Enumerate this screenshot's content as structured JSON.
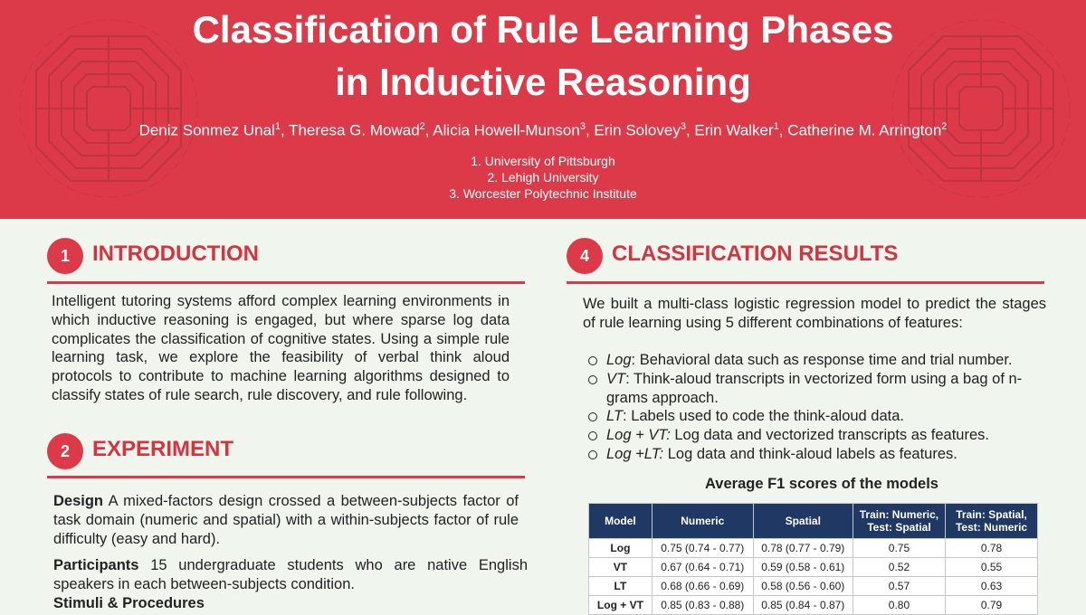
{
  "title_line1": "Classification of Rule Learning Phases",
  "title_line2": "in Inductive Reasoning",
  "authors": [
    {
      "name": "Deniz Sonmez Unal",
      "aff": "1"
    },
    {
      "name": "Theresa G. Mowad",
      "aff": "2"
    },
    {
      "name": "Alicia Howell-Munson",
      "aff": "3"
    },
    {
      "name": "Erin Solovey",
      "aff": "3"
    },
    {
      "name": "Erin Walker",
      "aff": "1"
    },
    {
      "name": "Catherine M. Arrington",
      "aff": "2"
    }
  ],
  "affiliations": [
    "1. University of Pittsburgh",
    "2. Lehigh University",
    "3. Worcester Polytechnic Institute"
  ],
  "colors": {
    "accent": "#dc3a48",
    "table_header": "#1f3864",
    "background": "#f0f6ee"
  },
  "sections": {
    "intro": {
      "number": "1",
      "title": "INTRODUCTION",
      "text": "Intelligent tutoring systems afford complex learning environments in which inductive reasoning is engaged, but where sparse log data complicates the classification of cognitive states. Using a simple rule learning task, we explore the feasibility of verbal think aloud protocols to contribute to machine learning algorithms designed to classify states of rule search, rule discovery, and rule following."
    },
    "experiment": {
      "number": "2",
      "title": "EXPERIMENT",
      "design_label": "Design",
      "design_text": " A mixed-factors design crossed a between-subjects factor of task domain (numeric and spatial) with a within-subjects factor of rule difficulty (easy and hard).",
      "participants_label": "Participants",
      "participants_text": " 15 undergraduate students who are native English speakers in each between-subjects condition.",
      "stimuli_label": "Stimuli & Procedures"
    },
    "results": {
      "number": "4",
      "title": "CLASSIFICATION RESULTS",
      "text": "We built a multi-class logistic regression model to predict the stages of rule learning using 5 different combinations of features:",
      "bullets": [
        {
          "term": "Log",
          "desc": ": Behavioral data such as response time and trial number."
        },
        {
          "term": "VT",
          "desc": ": Think-aloud transcripts in vectorized form using a bag of n-grams approach."
        },
        {
          "term": "LT",
          "desc": ": Labels used to code the think-aloud data."
        },
        {
          "term": "Log + VT:",
          "desc": " Log data and vectorized transcripts as features."
        },
        {
          "term": "Log +LT:",
          "desc": " Log data and think-aloud labels as features."
        }
      ]
    }
  },
  "table": {
    "caption": "Average F1 scores of the models",
    "headers": [
      "Model",
      "Numeric",
      "Spatial",
      "Train: Numeric, Test: Spatial",
      "Train: Spatial, Test: Numeric"
    ],
    "rows": [
      [
        "Log",
        "0.75 (0.74 - 0.77)",
        "0.78 (0.77 - 0.79)",
        "0.75",
        "0.78"
      ],
      [
        "VT",
        "0.67 (0.64 - 0.71)",
        "0.59 (0.58 - 0.61)",
        "0.52",
        "0.55"
      ],
      [
        "LT",
        "0.68 (0.66 - 0.69)",
        "0.58 (0.56 - 0.60)",
        "0.57",
        "0.63"
      ],
      [
        "Log + VT",
        "0.85 (0.83 - 0.88)",
        "0.85 (0.84 - 0.87)",
        "0.80",
        "0.79"
      ]
    ]
  }
}
